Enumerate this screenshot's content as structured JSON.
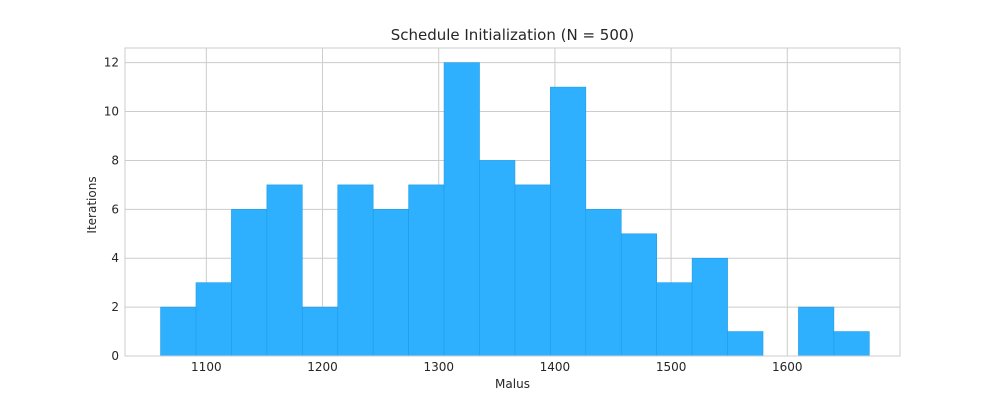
{
  "chart_data": {
    "type": "bar",
    "title": "Schedule Initialization (N = 500)",
    "xlabel": "Malus",
    "ylabel": "Iterations",
    "xlim": [
      1030,
      1697
    ],
    "ylim": [
      0,
      12.6
    ],
    "xticks": [
      1100,
      1200,
      1300,
      1400,
      1500,
      1600
    ],
    "yticks": [
      0,
      2,
      4,
      6,
      8,
      10,
      12
    ],
    "grid": true,
    "bar_color": "#2eb0ff",
    "bins": [
      {
        "x0": 1060.6,
        "x1": 1091.1,
        "value": 2
      },
      {
        "x0": 1091.1,
        "x1": 1121.6,
        "value": 3
      },
      {
        "x0": 1121.6,
        "x1": 1152.1,
        "value": 6
      },
      {
        "x0": 1152.1,
        "x1": 1182.6,
        "value": 7
      },
      {
        "x0": 1182.6,
        "x1": 1213.1,
        "value": 2
      },
      {
        "x0": 1213.1,
        "x1": 1243.6,
        "value": 7
      },
      {
        "x0": 1243.6,
        "x1": 1274.1,
        "value": 6
      },
      {
        "x0": 1274.1,
        "x1": 1304.6,
        "value": 7
      },
      {
        "x0": 1304.6,
        "x1": 1335.1,
        "value": 12
      },
      {
        "x0": 1335.1,
        "x1": 1365.6,
        "value": 8
      },
      {
        "x0": 1365.6,
        "x1": 1396.1,
        "value": 7
      },
      {
        "x0": 1396.1,
        "x1": 1426.6,
        "value": 11
      },
      {
        "x0": 1426.6,
        "x1": 1457.1,
        "value": 6
      },
      {
        "x0": 1457.1,
        "x1": 1487.6,
        "value": 5
      },
      {
        "x0": 1487.6,
        "x1": 1518.1,
        "value": 3
      },
      {
        "x0": 1518.1,
        "x1": 1548.6,
        "value": 4
      },
      {
        "x0": 1548.6,
        "x1": 1579.1,
        "value": 1
      },
      {
        "x0": 1579.1,
        "x1": 1609.6,
        "value": 0
      },
      {
        "x0": 1609.6,
        "x1": 1640.1,
        "value": 2
      },
      {
        "x0": 1640.1,
        "x1": 1670.6,
        "value": 1
      }
    ]
  }
}
